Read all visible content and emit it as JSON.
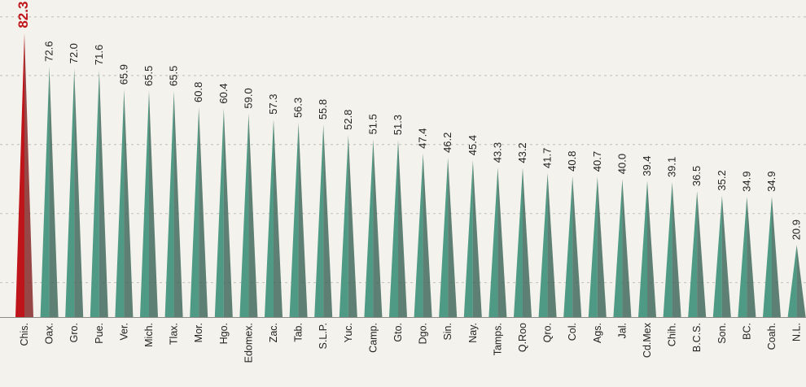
{
  "colors": {
    "highlight": "#c0141b",
    "highlight_dark": "#7a0d10",
    "bar": "#4f9a84",
    "bar_dark": "#2c5a4c",
    "background": "#f4f2ec"
  },
  "chart_data": {
    "type": "bar",
    "title": "",
    "xlabel": "",
    "ylabel": "",
    "ylim": [
      0,
      90
    ],
    "grid": true,
    "highlight_index": 0,
    "categories": [
      "Chis.",
      "Oax.",
      "Gro.",
      "Pue.",
      "Ver.",
      "Mich.",
      "Tlax.",
      "Mor.",
      "Hgo.",
      "Edomex.",
      "Zac.",
      "Tab.",
      "S.L.P.",
      "Yuc.",
      "Camp.",
      "Gto.",
      "Dgo.",
      "Sin.",
      "Nay.",
      "Tamps.",
      "Q.Roo",
      "Qro.",
      "Col.",
      "Ags.",
      "Jal.",
      "Cd.Mex",
      "Chih.",
      "B.C.S.",
      "Son.",
      "BC.",
      "Coah.",
      "N.L."
    ],
    "values": [
      82.3,
      72.6,
      72.0,
      71.6,
      65.9,
      65.5,
      65.5,
      60.8,
      60.4,
      59.0,
      57.3,
      56.3,
      55.8,
      52.8,
      51.5,
      51.3,
      47.4,
      46.2,
      45.4,
      43.3,
      43.2,
      41.7,
      40.8,
      40.7,
      40.0,
      39.4,
      39.1,
      36.5,
      35.2,
      34.9,
      34.9,
      20.9
    ],
    "value_labels": [
      "82.3",
      "72.6",
      "72.0",
      "71.6",
      "65.9",
      "65.5",
      "65.5",
      "60.8",
      "60.4",
      "59.0",
      "57.3",
      "56.3",
      "55.8",
      "52.8",
      "51.5",
      "51.3",
      "47.4",
      "46.2",
      "45.4",
      "43.3",
      "43.2",
      "41.7",
      "40.8",
      "40.7",
      "40.0",
      "39.4",
      "39.1",
      "36.5",
      "35.2",
      "34.9",
      "34.9",
      "20.9"
    ]
  }
}
